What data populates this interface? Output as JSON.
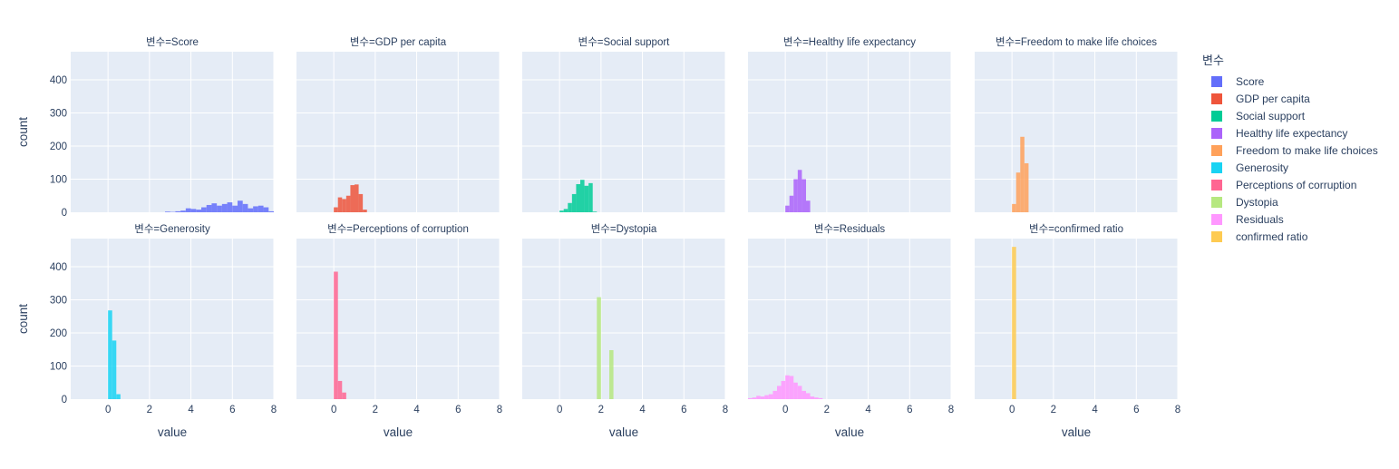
{
  "chart_data": {
    "type": "histogram",
    "facet_label_prefix": "변수=",
    "xlabel": "value",
    "ylabel": "count",
    "xlim": [
      -1.8,
      8
    ],
    "ylim": [
      0,
      485
    ],
    "x_ticks": [
      0,
      2,
      4,
      6,
      8
    ],
    "y_ticks": [
      0,
      100,
      200,
      300,
      400
    ],
    "grid": true,
    "legend": {
      "title": "변수",
      "placement": "right",
      "items": [
        {
          "name": "Score",
          "color": "#636efa"
        },
        {
          "name": "GDP per capita",
          "color": "#EF553B"
        },
        {
          "name": "Social support",
          "color": "#00cc96"
        },
        {
          "name": "Healthy life expectancy",
          "color": "#ab63fa"
        },
        {
          "name": "Freedom to make life choices",
          "color": "#FFA15A"
        },
        {
          "name": "Generosity",
          "color": "#19d3f3"
        },
        {
          "name": "Perceptions of corruption",
          "color": "#FF6692"
        },
        {
          "name": "Dystopia",
          "color": "#B6E880"
        },
        {
          "name": "Residuals",
          "color": "#FF97FF"
        },
        {
          "name": "confirmed ratio",
          "color": "#FECB52"
        }
      ]
    },
    "panels": [
      {
        "variable": "Score",
        "color": "#636efa",
        "bin_width": 0.25,
        "bins": [
          [
            2.75,
            2
          ],
          [
            3.0,
            1
          ],
          [
            3.25,
            3
          ],
          [
            3.5,
            5
          ],
          [
            3.75,
            12
          ],
          [
            4.0,
            10
          ],
          [
            4.25,
            8
          ],
          [
            4.5,
            15
          ],
          [
            4.75,
            22
          ],
          [
            5.0,
            27
          ],
          [
            5.25,
            20
          ],
          [
            5.5,
            25
          ],
          [
            5.75,
            30
          ],
          [
            6.0,
            20
          ],
          [
            6.25,
            35
          ],
          [
            6.5,
            25
          ],
          [
            6.75,
            12
          ],
          [
            7.0,
            18
          ],
          [
            7.25,
            20
          ],
          [
            7.5,
            15
          ],
          [
            7.75,
            3
          ]
        ]
      },
      {
        "variable": "GDP per capita",
        "color": "#EF553B",
        "bin_width": 0.2,
        "bins": [
          [
            0.0,
            15
          ],
          [
            0.2,
            45
          ],
          [
            0.4,
            40
          ],
          [
            0.6,
            50
          ],
          [
            0.8,
            82
          ],
          [
            1.0,
            84
          ],
          [
            1.2,
            55
          ],
          [
            1.4,
            8
          ]
        ]
      },
      {
        "variable": "Social support",
        "color": "#00cc96",
        "bin_width": 0.2,
        "bins": [
          [
            0.0,
            5
          ],
          [
            0.2,
            10
          ],
          [
            0.4,
            28
          ],
          [
            0.6,
            55
          ],
          [
            0.8,
            85
          ],
          [
            1.0,
            98
          ],
          [
            1.2,
            80
          ],
          [
            1.4,
            88
          ],
          [
            1.6,
            2
          ]
        ]
      },
      {
        "variable": "Healthy life expectancy",
        "color": "#ab63fa",
        "bin_width": 0.2,
        "bins": [
          [
            0.0,
            20
          ],
          [
            0.2,
            50
          ],
          [
            0.4,
            100
          ],
          [
            0.6,
            128
          ],
          [
            0.8,
            100
          ],
          [
            1.0,
            35
          ]
        ]
      },
      {
        "variable": "Freedom to make life choices",
        "color": "#FFA15A",
        "bin_width": 0.2,
        "bins": [
          [
            0.0,
            25
          ],
          [
            0.2,
            120
          ],
          [
            0.4,
            228
          ],
          [
            0.6,
            148
          ]
        ]
      },
      {
        "variable": "Generosity",
        "color": "#19d3f3",
        "bin_width": 0.2,
        "bins": [
          [
            0.0,
            268
          ],
          [
            0.2,
            177
          ],
          [
            0.4,
            15
          ]
        ]
      },
      {
        "variable": "Perceptions of corruption",
        "color": "#FF6692",
        "bin_width": 0.2,
        "bins": [
          [
            0.0,
            385
          ],
          [
            0.2,
            55
          ],
          [
            0.4,
            20
          ]
        ]
      },
      {
        "variable": "Dystopia",
        "color": "#B6E880",
        "bin_width": 0.2,
        "bins": [
          [
            1.8,
            308
          ],
          [
            2.4,
            148
          ]
        ]
      },
      {
        "variable": "Residuals",
        "color": "#FF97FF",
        "bin_width": 0.2,
        "bins": [
          [
            -1.8,
            3
          ],
          [
            -1.6,
            5
          ],
          [
            -1.4,
            10
          ],
          [
            -1.2,
            8
          ],
          [
            -1.0,
            12
          ],
          [
            -0.8,
            15
          ],
          [
            -0.6,
            25
          ],
          [
            -0.4,
            40
          ],
          [
            -0.2,
            55
          ],
          [
            0.0,
            72
          ],
          [
            0.2,
            70
          ],
          [
            0.4,
            50
          ],
          [
            0.6,
            40
          ],
          [
            0.8,
            25
          ],
          [
            1.0,
            18
          ],
          [
            1.2,
            8
          ],
          [
            1.4,
            5
          ],
          [
            1.6,
            3
          ]
        ]
      },
      {
        "variable": "confirmed ratio",
        "color": "#FECB52",
        "bin_width": 0.2,
        "bins": [
          [
            0.0,
            460
          ]
        ]
      }
    ]
  }
}
